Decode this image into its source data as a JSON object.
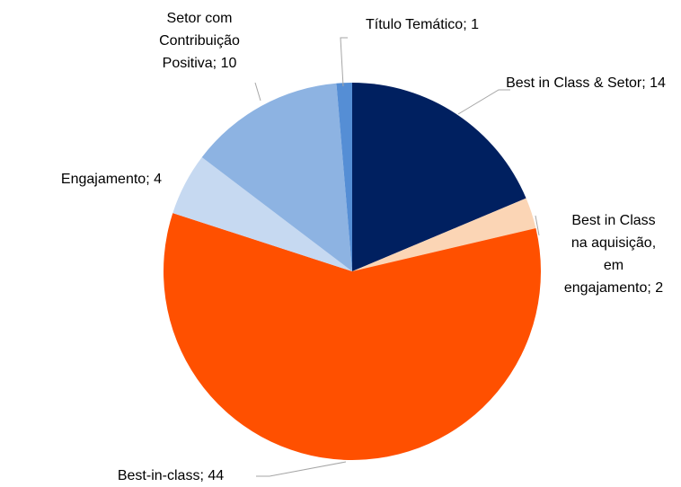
{
  "chart_data": {
    "type": "pie",
    "categories": [
      "Best in Class & Setor",
      "Best in Class na aquisição, em engajamento",
      "Best-in-class",
      "Engajamento",
      "Setor com Contribuição Positiva",
      "Título Temático"
    ],
    "values": [
      14,
      2,
      44,
      4,
      10,
      1
    ],
    "colors": [
      "#002060",
      "#fbd5b5",
      "#ff5000",
      "#c6d9f1",
      "#8db3e2",
      "#558ed5"
    ],
    "label_separator": "; "
  }
}
